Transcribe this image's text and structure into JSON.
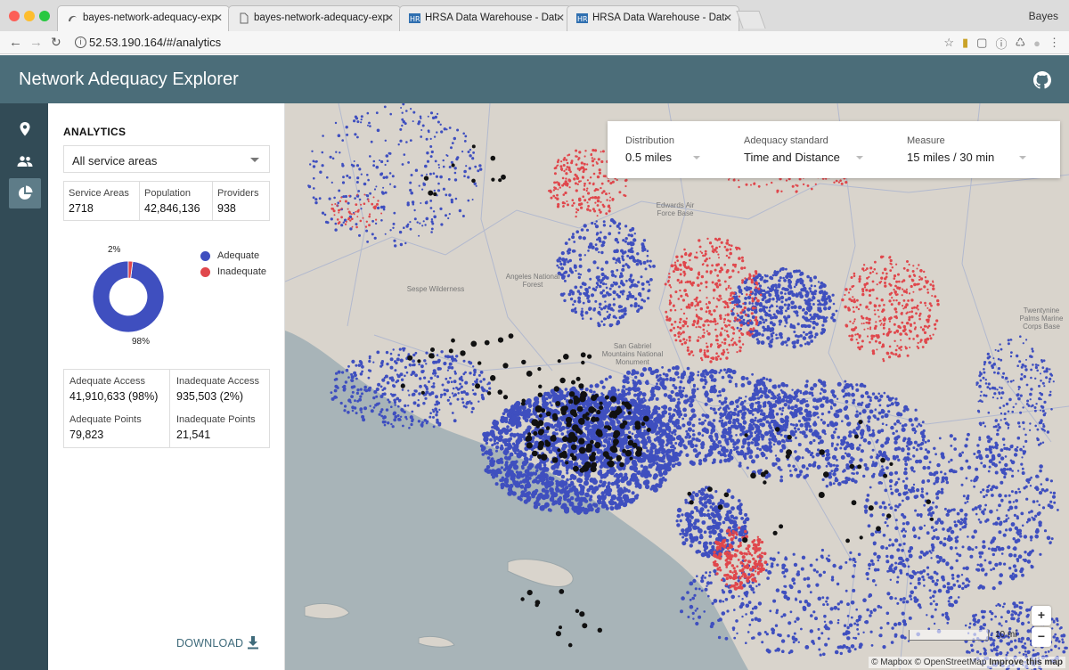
{
  "browser": {
    "tabs": [
      {
        "label": "bayes-network-adequacy-expl",
        "active": true
      },
      {
        "label": "bayes-network-adequacy-expl",
        "active": false
      },
      {
        "label": "HRSA Data Warehouse - Data",
        "active": false
      },
      {
        "label": "HRSA Data Warehouse - Data",
        "active": false
      }
    ],
    "profile": "Bayes",
    "url": "52.53.190.164/#/analytics",
    "extension_icons": [
      "star-icon",
      "hrsa-extension-icon",
      "stop-extension-icon",
      "info-extension-icon",
      "recycle-extension-icon",
      "circle-extension-icon",
      "menu-dots-icon"
    ]
  },
  "app": {
    "title": "Network Adequacy Explorer",
    "nav": [
      {
        "name": "providers-nav-button",
        "icon": "map-pin-icon",
        "active": false
      },
      {
        "name": "population-nav-button",
        "icon": "people-icon",
        "active": false
      },
      {
        "name": "analytics-nav-button",
        "icon": "pie-chart-icon",
        "active": true
      }
    ]
  },
  "analytics": {
    "title": "ANALYTICS",
    "service_area_select": "All service areas",
    "stats": [
      {
        "label": "Service Areas",
        "value": "2718"
      },
      {
        "label": "Population",
        "value": "42,846,136"
      },
      {
        "label": "Providers",
        "value": "938"
      }
    ],
    "chart_data": {
      "type": "pie",
      "labels": [
        "Adequate",
        "Inadequate"
      ],
      "values": [
        98,
        2
      ],
      "value_labels": [
        "98%",
        "2%"
      ],
      "colors": [
        "#3f4fbf",
        "#e0474c"
      ],
      "legend_position": "right"
    },
    "access": [
      {
        "label": "Adequate Access",
        "value": "41,910,633 (98%)"
      },
      {
        "label": "Inadequate Access",
        "value": "935,503 (2%)"
      },
      {
        "label": "Adequate Points",
        "value": "79,823"
      },
      {
        "label": "Inadequate Points",
        "value": "21,541"
      }
    ],
    "download_label": "DOWNLOAD"
  },
  "filters": {
    "distribution": {
      "label": "Distribution",
      "value": "0.5 miles"
    },
    "adequacy_standard": {
      "label": "Adequacy standard",
      "value": "Time and Distance"
    },
    "measure": {
      "label": "Measure",
      "value": "15 miles / 30 min"
    }
  },
  "map": {
    "place_labels": [
      "Edwards Air Force Base",
      "Sespe Wilderness",
      "Angeles National Forest",
      "San Gabriel Mountains National Monument",
      "Twentynine Palms Marine Corps Base"
    ],
    "scale_label": "10 mi",
    "zoom_in": "+",
    "zoom_out": "−",
    "attribution": {
      "mapbox": "© Mapbox",
      "osm": "© OpenStreetMap",
      "improve": "Improve this map"
    },
    "colors": {
      "adequate": "#3f4fbf",
      "inadequate": "#e0474c",
      "provider": "#111111",
      "water": "#a8b4b8",
      "land": "#d9d4cc"
    }
  }
}
